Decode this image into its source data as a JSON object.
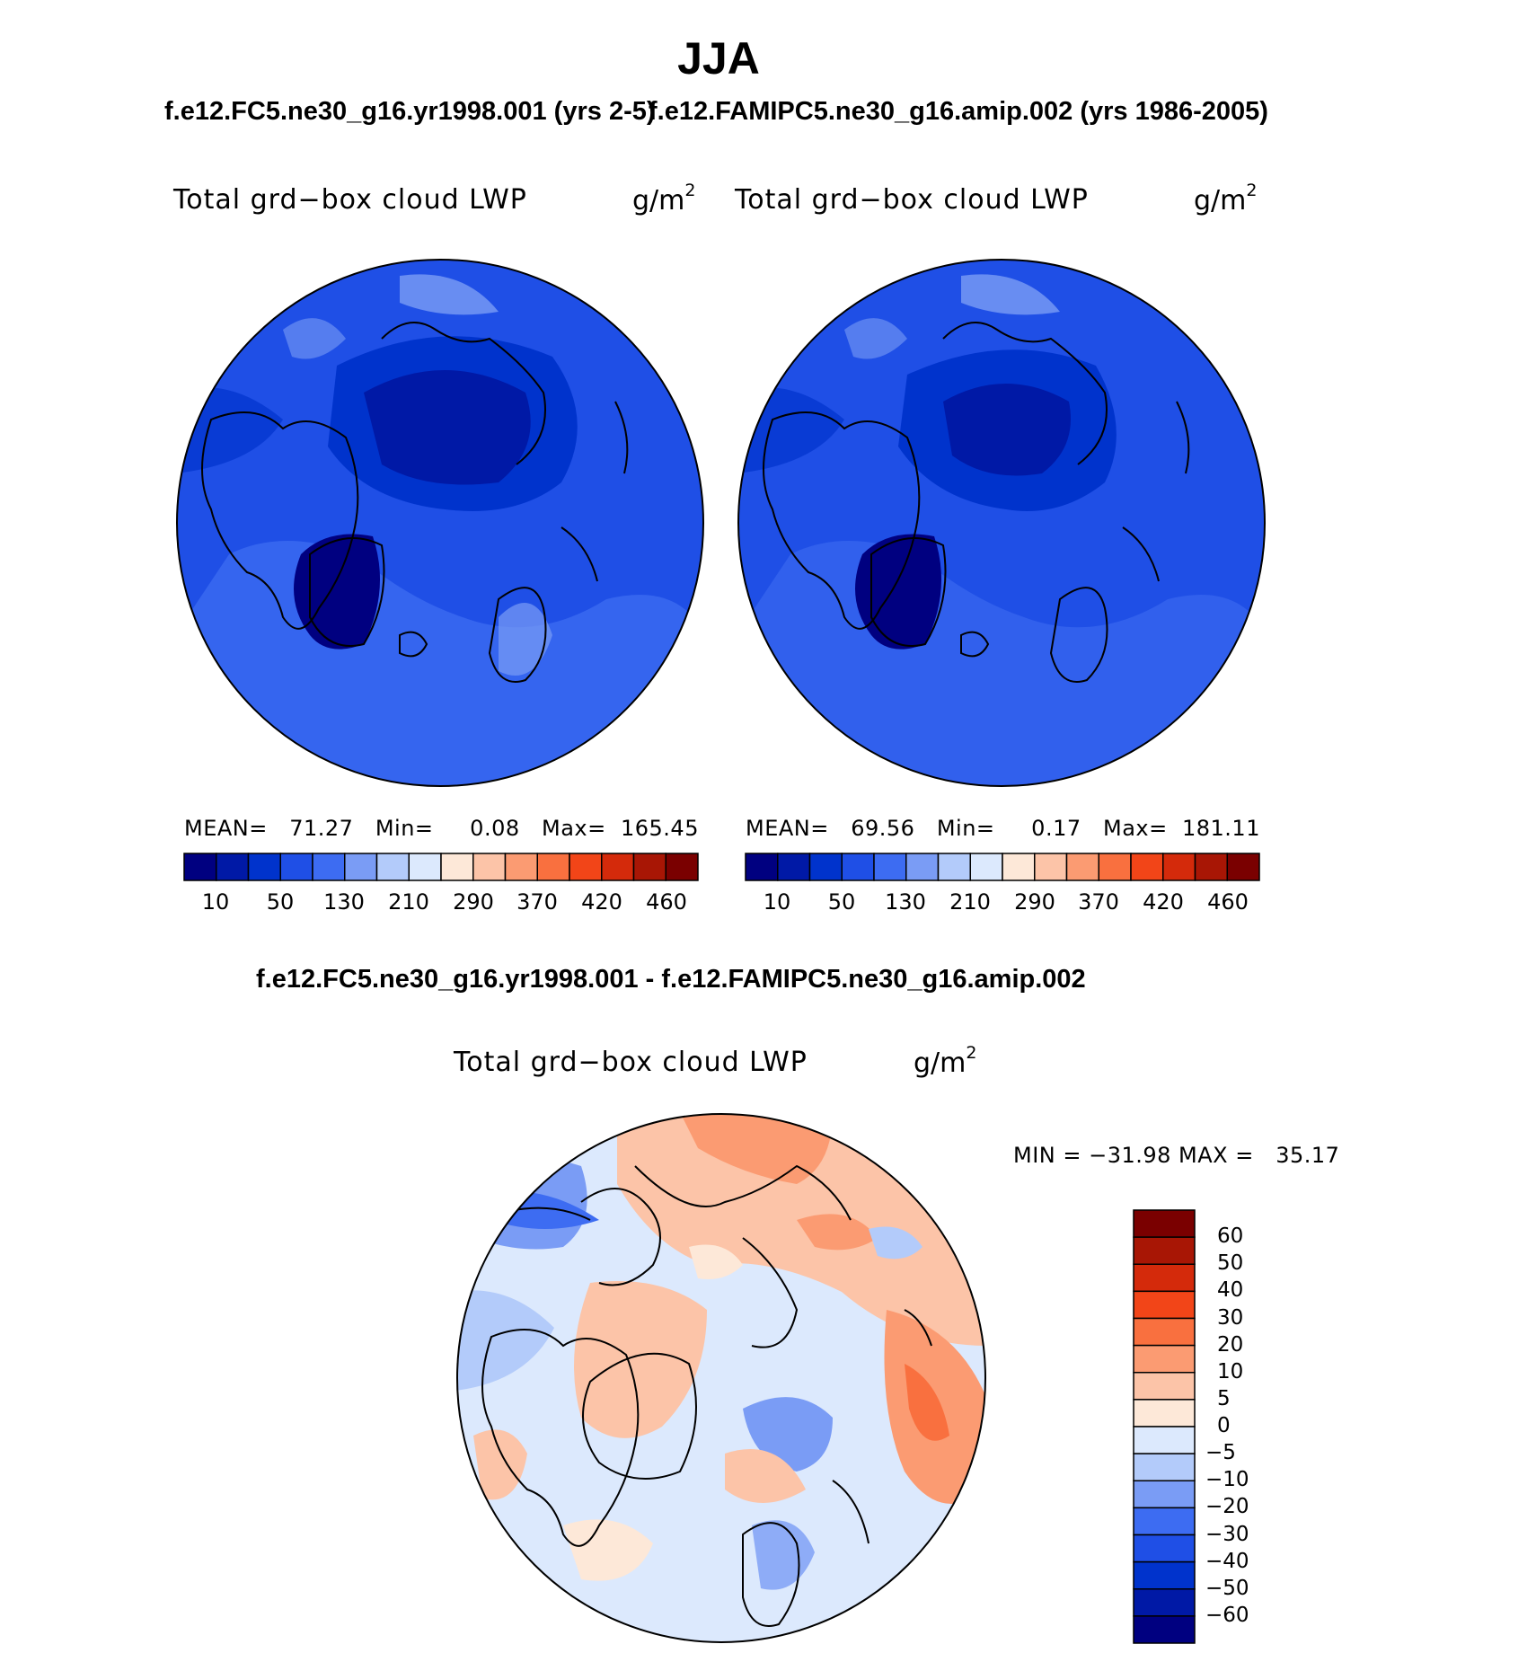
{
  "title": "JJA",
  "panels": [
    {
      "case_title": "f.e12.FC5.ne30_g16.yr1998.001 (yrs 2-5)",
      "variable": "Total grd−box cloud LWP",
      "units_base": "g/m",
      "units_exp": "2",
      "stats": "MEAN=   71.27   Min=     0.08   Max=  165.45"
    },
    {
      "case_title": "f.e12.FAMIPC5.ne30_g16.amip.002 (yrs 1986-2005)",
      "variable": "Total grd−box cloud LWP",
      "units_base": "g/m",
      "units_exp": "2",
      "stats": "MEAN=   69.56   Min=     0.17   Max=  181.11"
    }
  ],
  "colorbar_top": {
    "colors": [
      "#000080",
      "#0019a6",
      "#0033cc",
      "#1f4fe6",
      "#3d6cf2",
      "#7a9cf5",
      "#b3cbfa",
      "#dce9fd",
      "#fde8d8",
      "#fcc4a8",
      "#fb9b72",
      "#f9703f",
      "#f24518",
      "#d42a0b",
      "#a81605",
      "#7a0000"
    ],
    "tick_labels": [
      "10",
      "50",
      "130",
      "210",
      "290",
      "370",
      "420",
      "460"
    ]
  },
  "diff_panel": {
    "title": "f.e12.FC5.ne30_g16.yr1998.001 - f.e12.FAMIPC5.ne30_g16.amip.002",
    "variable": "Total grd−box cloud LWP",
    "units_base": "g/m",
    "units_exp": "2",
    "minmax": "MIN = −31.98 MAX =   35.17",
    "colorbar": {
      "colors_top_to_bottom": [
        "#7a0000",
        "#a81605",
        "#d42a0b",
        "#f24518",
        "#f9703f",
        "#fb9b72",
        "#fcc4a8",
        "#fde8d8",
        "#dce9fd",
        "#b3cbfa",
        "#7a9cf5",
        "#3d6cf2",
        "#1f4fe6",
        "#0033cc",
        "#0019a6",
        "#000080"
      ],
      "labels": [
        "60",
        "50",
        "40",
        "30",
        "20",
        "10",
        "5",
        "0",
        "−5",
        "−10",
        "−20",
        "−30",
        "−40",
        "−50",
        "−60"
      ]
    }
  }
}
